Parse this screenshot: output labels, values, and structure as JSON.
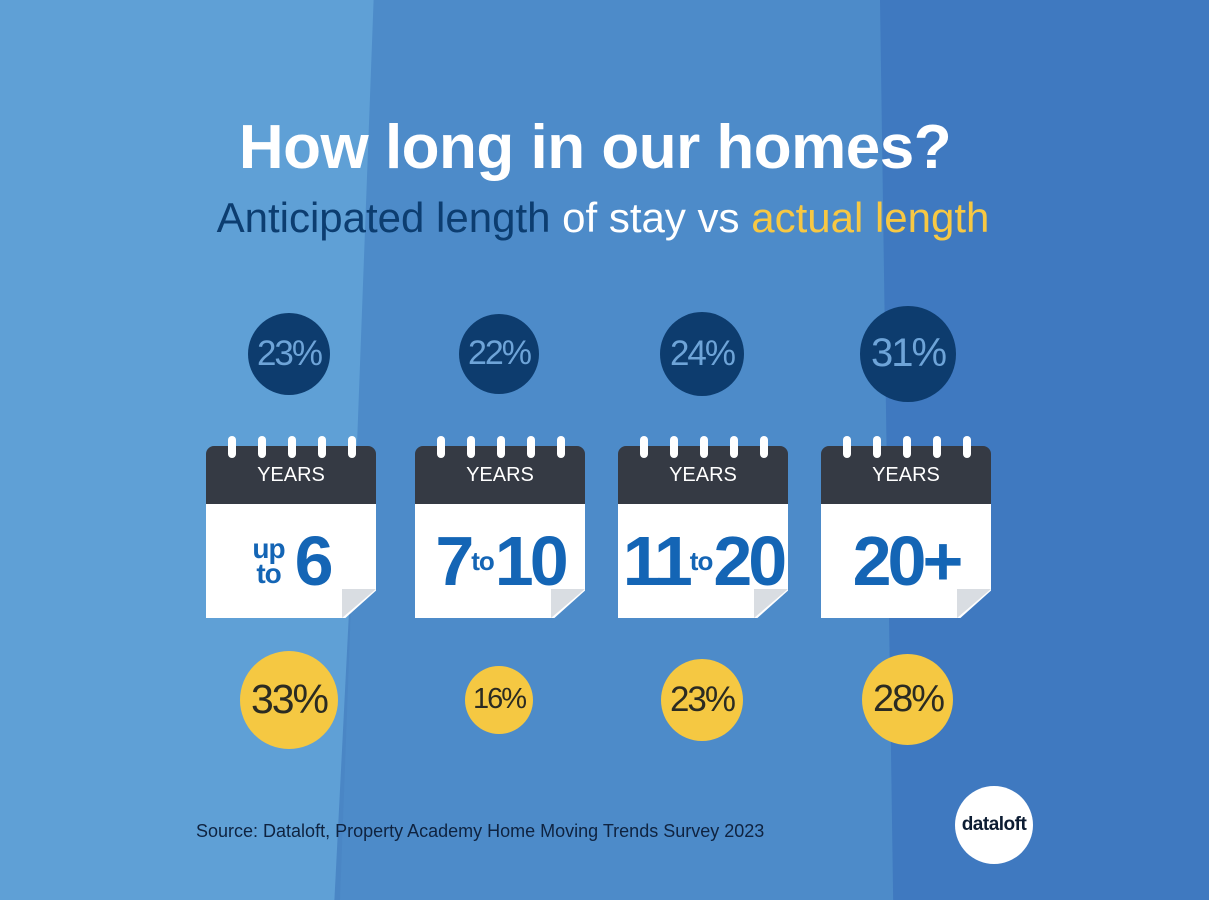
{
  "title": "How long in our homes?",
  "subtitle": {
    "part1": "Anticipated length",
    "part2": " of stay vs ",
    "part3": "actual length"
  },
  "colors": {
    "anticipated": "#0d3c6e",
    "actual": "#f5c842",
    "calendar_number": "#1465b5",
    "calendar_header": "#353a44"
  },
  "chart_data": {
    "type": "bubble",
    "categories": [
      "up to 6",
      "7 to 10",
      "11 to 20",
      "20+"
    ],
    "category_unit": "YEARS",
    "series": [
      {
        "name": "Anticipated length",
        "values": [
          23,
          22,
          24,
          31
        ]
      },
      {
        "name": "actual length",
        "values": [
          33,
          16,
          23,
          28
        ]
      }
    ],
    "value_labels": {
      "anticipated": [
        "23%",
        "22%",
        "24%",
        "31%"
      ],
      "actual": [
        "33%",
        "16%",
        "23%",
        "28%"
      ]
    }
  },
  "calendars": [
    {
      "header": "YEARS",
      "small_top": "up",
      "small_bottom": "to",
      "number": "6"
    },
    {
      "header": "YEARS",
      "left": "7",
      "connector": "to",
      "right": "10"
    },
    {
      "header": "YEARS",
      "left": "11",
      "connector": "to",
      "right": "20"
    },
    {
      "header": "YEARS",
      "number": "20+"
    }
  ],
  "source": "Source: Dataloft, Property Academy Home Moving Trends Survey 2023",
  "logo": "dataloft"
}
